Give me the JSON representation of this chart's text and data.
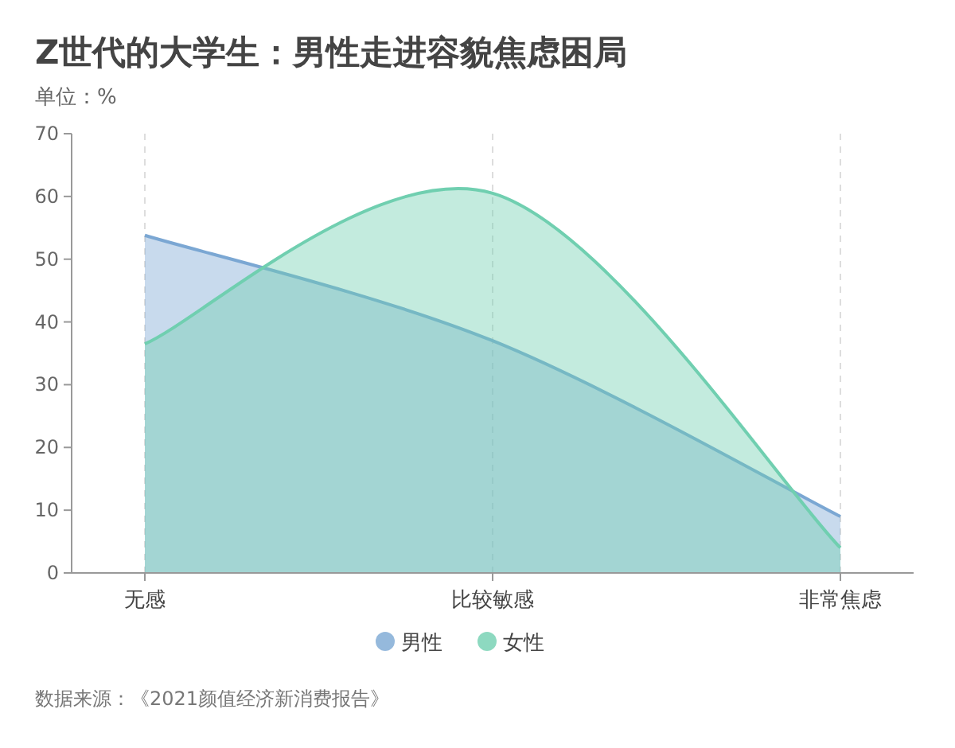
{
  "chart_data": {
    "type": "area",
    "title": "Z世代的大学生：男性走进容貌焦虑困局",
    "subtitle": "单位：%",
    "categories": [
      "无感",
      "比较敏感",
      "非常焦虑"
    ],
    "series": [
      {
        "name": "男性",
        "color": "#7ba7d3",
        "values": [
          53.8,
          37,
          9
        ]
      },
      {
        "name": "女性",
        "color": "#70cfb0",
        "values": [
          36.5,
          60.5,
          4
        ]
      }
    ],
    "ylim": [
      0,
      70
    ],
    "yticks": [
      0,
      10,
      20,
      30,
      40,
      50,
      60,
      70
    ],
    "grid": "x",
    "legend": "bottom",
    "marker": "none",
    "line_style": "solid",
    "annotations": [
      "数据来源：《2021颜值经济新消费报告》"
    ]
  }
}
